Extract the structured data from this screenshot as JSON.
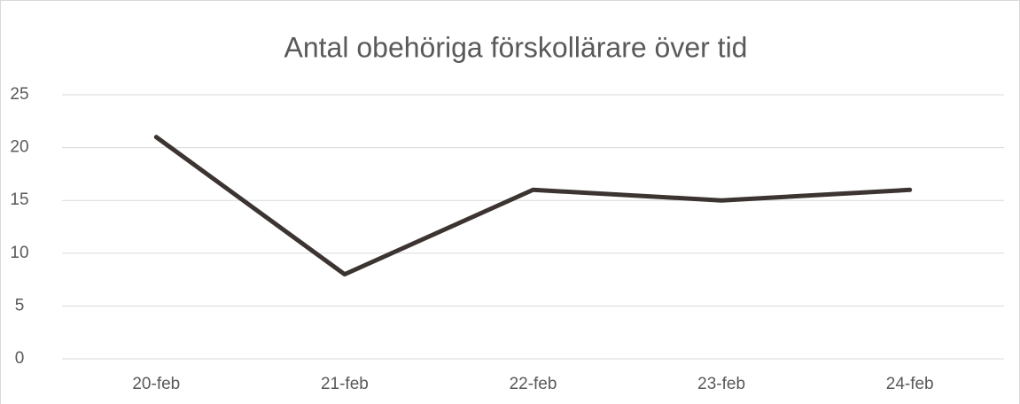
{
  "chart_data": {
    "type": "line",
    "title": "Antal obehöriga förskollärare över tid",
    "categories": [
      "20-feb",
      "21-feb",
      "22-feb",
      "23-feb",
      "24-feb"
    ],
    "series": [
      {
        "name": "Antal obehöriga förskollärare",
        "color": "#3b3431",
        "values": [
          21,
          8,
          16,
          15,
          16
        ]
      }
    ],
    "ylim": [
      0,
      25
    ],
    "yticks": [
      0,
      5,
      10,
      15,
      20,
      25
    ],
    "grid": true
  }
}
